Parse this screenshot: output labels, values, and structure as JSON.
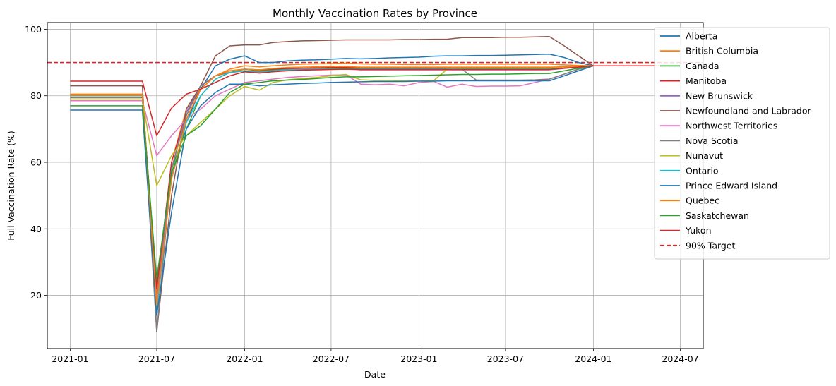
{
  "chart_data": {
    "type": "line",
    "title": "Monthly Vaccination Rates by Province",
    "xlabel": "Date",
    "ylabel": "Full Vaccination Rate (%)",
    "xlim": [
      "2020-11-14",
      "2024-08-18"
    ],
    "ylim": [
      4,
      102
    ],
    "x_ticks": [
      "2021-01-01",
      "2021-07-01",
      "2022-01-01",
      "2022-07-01",
      "2023-01-01",
      "2023-07-01",
      "2024-01-01",
      "2024-07-01"
    ],
    "x_tick_labels": [
      "2021-01",
      "2021-07",
      "2022-01",
      "2022-07",
      "2023-01",
      "2023-07",
      "2024-01",
      "2024-07"
    ],
    "y_ticks": [
      20,
      40,
      60,
      80,
      100
    ],
    "grid": true,
    "legend_position": "top-right, outside plot",
    "reference_line": {
      "label": "90% Target",
      "value": 90,
      "color": "#d62728",
      "style": "dashed"
    },
    "dates": [
      "2021-01-01",
      "2021-06-01",
      "2021-07-01",
      "2021-08-01",
      "2021-09-01",
      "2021-10-01",
      "2021-11-01",
      "2021-12-01",
      "2022-01-01",
      "2022-02-01",
      "2022-03-01",
      "2022-04-01",
      "2022-05-01",
      "2022-06-01",
      "2022-07-01",
      "2022-08-01",
      "2022-09-01",
      "2022-10-01",
      "2022-11-01",
      "2022-12-01",
      "2023-01-01",
      "2023-02-01",
      "2023-03-01",
      "2023-04-01",
      "2023-05-01",
      "2023-06-01",
      "2023-07-01",
      "2023-08-01",
      "2023-09-01",
      "2023-10-01",
      "2023-11-01",
      "2023-12-01",
      "2024-01-01",
      "2024-06-01"
    ],
    "series": [
      {
        "name": "Alberta",
        "color": "#1f77b4",
        "values": [
          80.4,
          80.4,
          18,
          55,
          72,
          82,
          89,
          91,
          92,
          90,
          90,
          90.5,
          90.7,
          90.8,
          91,
          91.2,
          91.1,
          91.2,
          91.4,
          91.5,
          91.6,
          91.9,
          92,
          92,
          92.1,
          92.1,
          92.2,
          92.3,
          92.4,
          92.5,
          91.5,
          90,
          89,
          89
        ]
      },
      {
        "name": "British Columbia",
        "color": "#ff7f0e",
        "values": [
          80.5,
          80.5,
          20,
          60,
          76,
          83,
          86,
          88,
          89,
          88.7,
          89,
          89.3,
          89.5,
          89.6,
          89.7,
          89.8,
          89.6,
          89.5,
          89.5,
          89.4,
          89.4,
          89.4,
          89.5,
          89.5,
          89.5,
          89.5,
          89.5,
          89.5,
          89.5,
          89.5,
          89.3,
          89.1,
          89,
          89
        ]
      },
      {
        "name": "Canada",
        "color": "#2ca02c",
        "values": [
          79,
          79,
          23,
          58,
          70,
          80,
          85,
          87,
          88,
          87.5,
          87.8,
          88,
          88.1,
          88.2,
          88.3,
          88.3,
          88.2,
          88.2,
          88.2,
          88.2,
          88.2,
          88.2,
          88.2,
          88.2,
          88.2,
          88.2,
          88.2,
          88.2,
          88.2,
          88.2,
          88.4,
          88.7,
          89,
          89
        ]
      },
      {
        "name": "Manitoba",
        "color": "#d62728",
        "values": [
          79.5,
          79.5,
          22,
          60,
          75,
          82,
          86,
          87.5,
          88,
          87.8,
          88,
          88.2,
          88.3,
          88.4,
          88.5,
          88.5,
          88.5,
          88.5,
          88.5,
          88.5,
          88.5,
          88.5,
          88.5,
          88.5,
          88.5,
          88.5,
          88.5,
          88.5,
          88.5,
          88.5,
          88.7,
          88.9,
          89,
          89
        ]
      },
      {
        "name": "New Brunswick",
        "color": "#9467bd",
        "values": [
          79,
          79,
          18,
          58,
          75,
          83,
          86,
          87,
          87.5,
          87,
          87.5,
          87.8,
          88,
          88,
          88,
          88,
          87.8,
          87.8,
          87.8,
          87.8,
          87.8,
          87.8,
          87.8,
          87.8,
          87.8,
          87.8,
          87.8,
          87.8,
          87.8,
          87.8,
          88.2,
          88.6,
          89,
          89
        ]
      },
      {
        "name": "Newfoundland and Labrador",
        "color": "#8c564b",
        "values": [
          83,
          83,
          9,
          50,
          76,
          83,
          92,
          95,
          95.3,
          95.3,
          96,
          96.3,
          96.5,
          96.6,
          96.7,
          96.8,
          96.8,
          96.8,
          96.8,
          96.9,
          96.9,
          97,
          97,
          97.5,
          97.5,
          97.5,
          97.6,
          97.6,
          97.7,
          97.8,
          95,
          92,
          89,
          89
        ]
      },
      {
        "name": "Northwest Territories",
        "color": "#e377c2",
        "values": [
          78.5,
          78.5,
          62,
          68,
          73,
          76,
          80,
          82,
          84,
          84.5,
          85,
          85.5,
          85.8,
          86,
          86.2,
          86.3,
          83.5,
          83.3,
          83.5,
          83,
          84,
          84.3,
          82.6,
          83.5,
          82.8,
          82.9,
          82.9,
          83,
          84,
          85,
          86.5,
          88,
          89,
          89
        ]
      },
      {
        "name": "Nova Scotia",
        "color": "#7f7f7f",
        "values": [
          79.5,
          79.5,
          9,
          58,
          74,
          83,
          86,
          87,
          87.5,
          87.3,
          87.6,
          87.9,
          88,
          88,
          88,
          88,
          88,
          88,
          88,
          88,
          88,
          88,
          88,
          88,
          84.7,
          84.7,
          84.7,
          84.7,
          84.8,
          85,
          86.5,
          88,
          89,
          89
        ]
      },
      {
        "name": "Nunavut",
        "color": "#bcbd22",
        "values": [
          79,
          79,
          53,
          62,
          68,
          72,
          76,
          80,
          82.8,
          81.7,
          84,
          84.8,
          85.2,
          85.5,
          86,
          86.4,
          84.8,
          84.6,
          84.6,
          84.5,
          84.5,
          84.6,
          88,
          88.3,
          88.3,
          88.3,
          88.3,
          88.3,
          88.3,
          88.3,
          88.5,
          88.8,
          89,
          89
        ]
      },
      {
        "name": "Ontario",
        "color": "#17becf",
        "values": [
          80,
          80,
          15,
          56,
          72,
          80,
          85,
          87,
          87.5,
          87,
          87.5,
          87.8,
          88,
          88,
          88,
          88,
          88,
          88,
          88,
          88,
          88,
          88,
          88,
          88,
          88,
          88,
          88,
          88,
          88,
          88,
          88.3,
          88.7,
          89,
          89
        ]
      },
      {
        "name": "Prince Edward Island",
        "color": "#1f77b4",
        "values": [
          75.7,
          75.7,
          14,
          45,
          70,
          77,
          81,
          83.5,
          83.5,
          83,
          83.3,
          83.5,
          83.7,
          83.8,
          84,
          84.1,
          84.2,
          84.3,
          84.3,
          84.3,
          84.4,
          84.4,
          84.5,
          84.5,
          84.5,
          84.5,
          84.5,
          84.5,
          84.5,
          84.5,
          86,
          87.5,
          89,
          89
        ]
      },
      {
        "name": "Quebec",
        "color": "#ff7f0e",
        "values": [
          80.2,
          80.2,
          17,
          55,
          73,
          82,
          86,
          87.5,
          88,
          87.8,
          88.2,
          88.5,
          88.6,
          88.7,
          88.8,
          88.8,
          88.6,
          88.6,
          88.6,
          88.6,
          88.6,
          88.6,
          88.6,
          88.6,
          88.6,
          88.6,
          88.6,
          88.6,
          88.6,
          88.6,
          88.7,
          88.9,
          89,
          89
        ]
      },
      {
        "name": "Saskatchewan",
        "color": "#2ca02c",
        "values": [
          77,
          77,
          25,
          57,
          68,
          71,
          76,
          81,
          83.5,
          84,
          84.5,
          84.7,
          84.9,
          85.2,
          85.5,
          85.7,
          85.7,
          85.8,
          85.9,
          86,
          86.1,
          86.2,
          86.3,
          86.4,
          86.4,
          86.5,
          86.5,
          86.6,
          86.7,
          86.7,
          87.5,
          88.3,
          89,
          89
        ]
      },
      {
        "name": "Yukon",
        "color": "#d62728",
        "values": [
          84.4,
          84.4,
          68,
          76.3,
          80.5,
          82,
          84,
          86,
          87.2,
          86.8,
          87.2,
          87.5,
          87.7,
          87.8,
          87.9,
          88,
          87.9,
          87.9,
          87.9,
          87.9,
          87.9,
          87.9,
          87.9,
          87.9,
          87.9,
          87.9,
          87.9,
          87.9,
          87.9,
          87.9,
          88.3,
          88.6,
          89,
          89
        ]
      }
    ]
  }
}
